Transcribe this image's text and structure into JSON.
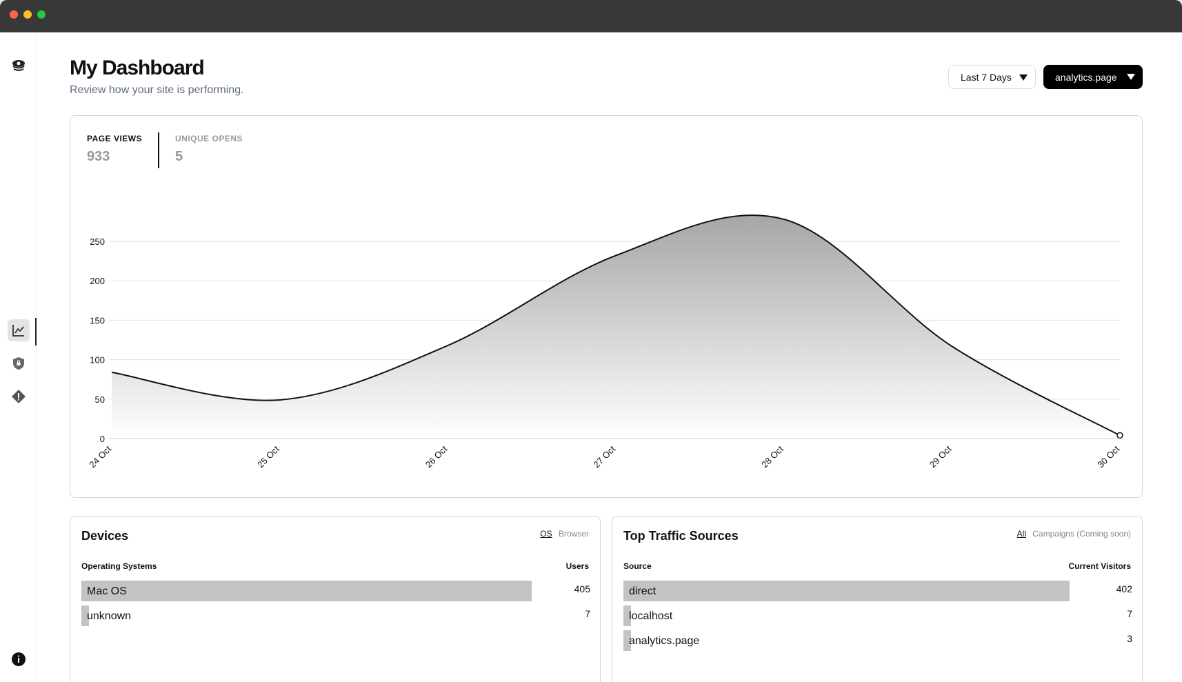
{
  "header": {
    "title": "My Dashboard",
    "subtitle": "Review how your site is performing.",
    "range_label": "Last 7 Days",
    "site_label": "analytics.page"
  },
  "sidebar": {
    "items": [
      {
        "icon": "logo-icon"
      },
      {
        "icon": "chart-line-icon",
        "active": true
      },
      {
        "icon": "shield-icon"
      },
      {
        "icon": "alert-icon"
      },
      {
        "icon": "info-icon"
      }
    ]
  },
  "metrics": [
    {
      "label": "PAGE VIEWS",
      "value": "933"
    },
    {
      "label": "UNIQUE OPENS",
      "value": "5"
    }
  ],
  "chart_data": {
    "type": "area",
    "x": [
      "24 Oct",
      "25 Oct",
      "26 Oct",
      "27 Oct",
      "28 Oct",
      "29 Oct",
      "30 Oct"
    ],
    "series": [
      {
        "values": [
          84,
          49,
          118,
          232,
          278,
          117,
          4
        ]
      }
    ],
    "ylim": [
      0,
      250
    ],
    "yticks": [
      0,
      50,
      100,
      150,
      200,
      250
    ],
    "grid": true,
    "colors": {
      "line": "#111111",
      "fill_top": "#a6a6a6",
      "fill_bottom": "#ffffff",
      "grid": "#e2e2e2"
    }
  },
  "devices": {
    "title": "Devices",
    "toggle_on": "OS",
    "toggle_off": "Browser",
    "col_left": "Operating Systems",
    "col_right": "Users",
    "rows": [
      {
        "label": "Mac OS",
        "value": "405",
        "fraction": 1.0
      },
      {
        "label": "unknown",
        "value": "7",
        "fraction": 0.017
      }
    ]
  },
  "traffic": {
    "title": "Top Traffic Sources",
    "toggle_on": "All",
    "toggle_off": "Campaigns (Coming soon)",
    "col_left": "Source",
    "col_right": "Current Visitors",
    "rows": [
      {
        "label": "direct",
        "value": "402",
        "fraction": 1.0
      },
      {
        "label": "localhost",
        "value": "7",
        "fraction": 0.017
      },
      {
        "label": "analytics.page",
        "value": "3",
        "fraction": 0.008
      }
    ]
  }
}
